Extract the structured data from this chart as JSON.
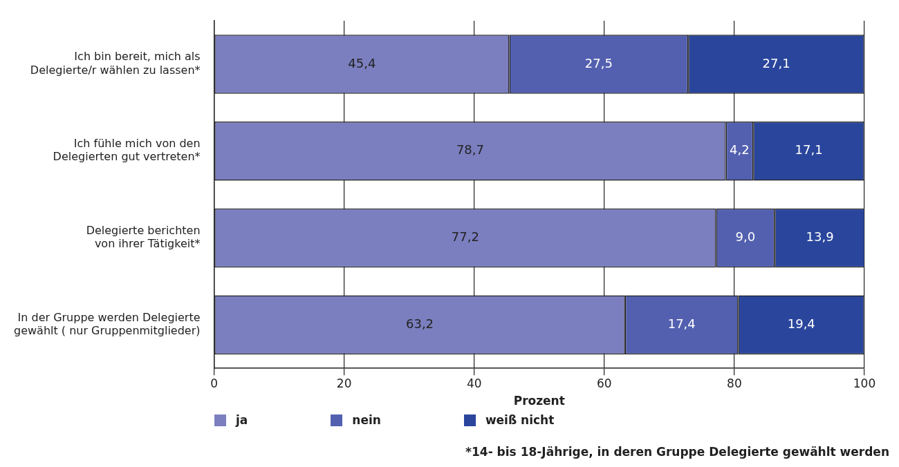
{
  "chart_data": {
    "type": "bar",
    "orientation": "horizontal",
    "stacked": true,
    "categories": [
      "Ich bin bereit, mich als\nDelegierte/r wählen zu lassen*",
      "Ich fühle mich von den\nDelegierten gut vertreten*",
      "Delegierte berichten\nvon ihrer Tätigkeit*",
      "In der Gruppe werden Delegierte\ngewählt ( nur Gruppenmitglieder)"
    ],
    "series": [
      {
        "name": "ja",
        "color": "#7b7fbf",
        "values": [
          45.4,
          78.7,
          77.2,
          63.2
        ],
        "value_labels": [
          "45,4",
          "78,7",
          "77,2",
          "63,2"
        ]
      },
      {
        "name": "nein",
        "color": "#5360b0",
        "values": [
          27.5,
          4.2,
          9.0,
          17.4
        ],
        "value_labels": [
          "27,5",
          "4,2",
          "9,0",
          "17,4"
        ]
      },
      {
        "name": "weiß nicht",
        "color": "#2a459c",
        "values": [
          27.1,
          17.1,
          13.9,
          19.4
        ],
        "value_labels": [
          "27,1",
          "17,1",
          "13,9",
          "19,4"
        ]
      }
    ],
    "xlabel": "Prozent",
    "xlim": [
      0,
      100
    ],
    "xticks": [
      0,
      20,
      40,
      60,
      80,
      100
    ],
    "grid": "x",
    "legend": "bottom left",
    "annotations": [
      "*14- bis 18-Jährige, in deren Gruppe Delegierte gewählt werden"
    ]
  }
}
